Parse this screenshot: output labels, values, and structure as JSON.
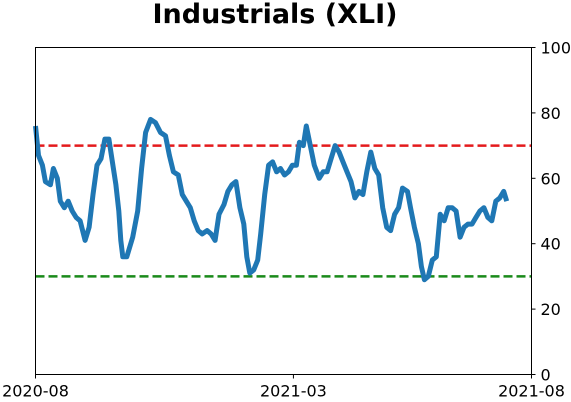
{
  "chart_data": {
    "type": "line",
    "title": "Industrials (XLI)",
    "xlabel": "",
    "ylabel": "",
    "x_ticks": [
      "2020-08",
      "2021-03",
      "2021-08"
    ],
    "y_ticks": [
      "0",
      "20",
      "40",
      "60",
      "80",
      "100"
    ],
    "ylim": [
      0,
      100
    ],
    "y_axis_side": "right",
    "grid": false,
    "legend": "none",
    "reference_lines": [
      {
        "value": 70,
        "color": "#e41a1c",
        "style": "dashed"
      },
      {
        "value": 30,
        "color": "#1a8a1a",
        "style": "dashed"
      }
    ],
    "series": [
      {
        "color": "#1f77b4",
        "points": [
          [
            0.0,
            76
          ],
          [
            0.006,
            67
          ],
          [
            0.014,
            64
          ],
          [
            0.02,
            59
          ],
          [
            0.03,
            58
          ],
          [
            0.036,
            63
          ],
          [
            0.044,
            60
          ],
          [
            0.05,
            53
          ],
          [
            0.058,
            51
          ],
          [
            0.066,
            53
          ],
          [
            0.074,
            50
          ],
          [
            0.082,
            48
          ],
          [
            0.09,
            47
          ],
          [
            0.1,
            41
          ],
          [
            0.108,
            45
          ],
          [
            0.116,
            55
          ],
          [
            0.124,
            64
          ],
          [
            0.132,
            66
          ],
          [
            0.14,
            72
          ],
          [
            0.148,
            72
          ],
          [
            0.154,
            66
          ],
          [
            0.162,
            58
          ],
          [
            0.168,
            50
          ],
          [
            0.172,
            41
          ],
          [
            0.176,
            36
          ],
          [
            0.184,
            36
          ],
          [
            0.196,
            42
          ],
          [
            0.206,
            50
          ],
          [
            0.214,
            63
          ],
          [
            0.222,
            74
          ],
          [
            0.232,
            78
          ],
          [
            0.242,
            77
          ],
          [
            0.252,
            74
          ],
          [
            0.262,
            73
          ],
          [
            0.27,
            67
          ],
          [
            0.278,
            62
          ],
          [
            0.288,
            61
          ],
          [
            0.296,
            55
          ],
          [
            0.304,
            53
          ],
          [
            0.312,
            51
          ],
          [
            0.32,
            47
          ],
          [
            0.328,
            44
          ],
          [
            0.336,
            43
          ],
          [
            0.346,
            44
          ],
          [
            0.354,
            43
          ],
          [
            0.362,
            41
          ],
          [
            0.37,
            49
          ],
          [
            0.38,
            52
          ],
          [
            0.388,
            56
          ],
          [
            0.396,
            58
          ],
          [
            0.404,
            59
          ],
          [
            0.412,
            51
          ],
          [
            0.42,
            46
          ],
          [
            0.426,
            36
          ],
          [
            0.432,
            31
          ],
          [
            0.44,
            32
          ],
          [
            0.448,
            35
          ],
          [
            0.454,
            43
          ],
          [
            0.462,
            55
          ],
          [
            0.47,
            64
          ],
          [
            0.478,
            65
          ],
          [
            0.486,
            62
          ],
          [
            0.494,
            63
          ],
          [
            0.502,
            61
          ],
          [
            0.51,
            62
          ],
          [
            0.518,
            64
          ],
          [
            0.526,
            64
          ],
          [
            0.532,
            71
          ],
          [
            0.54,
            70
          ],
          [
            0.546,
            76
          ],
          [
            0.554,
            70
          ],
          [
            0.562,
            64
          ],
          [
            0.572,
            60
          ],
          [
            0.58,
            62
          ],
          [
            0.588,
            62
          ],
          [
            0.596,
            66
          ],
          [
            0.604,
            70
          ],
          [
            0.612,
            68
          ],
          [
            0.62,
            65
          ],
          [
            0.628,
            62
          ],
          [
            0.636,
            59
          ],
          [
            0.644,
            54
          ],
          [
            0.652,
            56
          ],
          [
            0.66,
            55
          ],
          [
            0.668,
            62
          ],
          [
            0.676,
            68
          ],
          [
            0.684,
            63
          ],
          [
            0.692,
            61
          ],
          [
            0.7,
            51
          ],
          [
            0.708,
            45
          ],
          [
            0.716,
            44
          ],
          [
            0.724,
            49
          ],
          [
            0.732,
            51
          ],
          [
            0.74,
            57
          ],
          [
            0.75,
            56
          ],
          [
            0.756,
            51
          ],
          [
            0.764,
            45
          ],
          [
            0.772,
            40
          ],
          [
            0.778,
            33
          ],
          [
            0.784,
            29
          ],
          [
            0.792,
            30
          ],
          [
            0.8,
            35
          ],
          [
            0.808,
            36
          ],
          [
            0.816,
            49
          ],
          [
            0.824,
            47
          ],
          [
            0.832,
            51
          ],
          [
            0.84,
            51
          ],
          [
            0.848,
            50
          ],
          [
            0.856,
            42
          ],
          [
            0.864,
            45
          ],
          [
            0.872,
            46
          ],
          [
            0.88,
            46
          ],
          [
            0.888,
            48
          ],
          [
            0.896,
            50
          ],
          [
            0.904,
            51
          ],
          [
            0.912,
            48
          ],
          [
            0.92,
            47
          ],
          [
            0.928,
            53
          ],
          [
            0.936,
            54
          ],
          [
            0.944,
            56
          ],
          [
            0.95,
            53
          ]
        ]
      }
    ]
  }
}
